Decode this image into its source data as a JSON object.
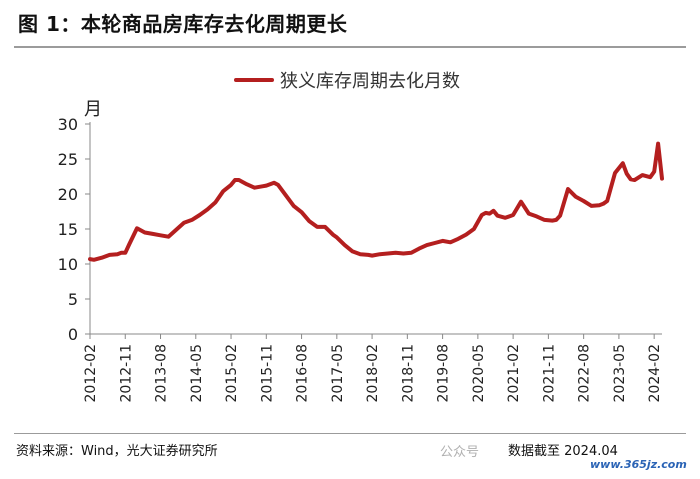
{
  "header": {
    "figure_title": "图 1：本轮商品房库存去化周期更长"
  },
  "footer": {
    "source": "资料来源：Wind，光大证券研究所",
    "watermark": "公众号",
    "note": "数据截至 2024.04",
    "site": "www.365jz.com"
  },
  "colors": {
    "series": "#b41f1f",
    "axis": "#888888",
    "rule": "#9b9b9b"
  },
  "chart_data": {
    "type": "line",
    "title": "",
    "ylabel": "月",
    "xlabel": "",
    "ylim": [
      0,
      30
    ],
    "yticks": [
      0,
      5,
      10,
      15,
      20,
      25,
      30
    ],
    "grid": false,
    "legend_position": "top",
    "x_tick_labels": [
      "2012-02",
      "2012-11",
      "2013-08",
      "2014-05",
      "2015-02",
      "2015-11",
      "2016-08",
      "2017-05",
      "2018-02",
      "2018-11",
      "2019-08",
      "2020-05",
      "2021-02",
      "2021-11",
      "2022-08",
      "2023-05",
      "2024-02"
    ],
    "series": [
      {
        "name": "狭义库存周期去化月数",
        "x": [
          "2012-02",
          "2012-03",
          "2012-05",
          "2012-07",
          "2012-09",
          "2012-10",
          "2012-11",
          "2012-12",
          "2013-02",
          "2013-04",
          "2013-06",
          "2013-08",
          "2013-10",
          "2013-12",
          "2014-02",
          "2014-04",
          "2014-06",
          "2014-08",
          "2014-10",
          "2014-12",
          "2015-02",
          "2015-03",
          "2015-04",
          "2015-06",
          "2015-08",
          "2015-10",
          "2015-11",
          "2016-01",
          "2016-02",
          "2016-04",
          "2016-06",
          "2016-08",
          "2016-10",
          "2016-12",
          "2017-02",
          "2017-04",
          "2017-05",
          "2017-07",
          "2017-09",
          "2017-11",
          "2018-01",
          "2018-02",
          "2018-04",
          "2018-06",
          "2018-08",
          "2018-10",
          "2018-12",
          "2019-02",
          "2019-04",
          "2019-06",
          "2019-08",
          "2019-10",
          "2019-12",
          "2020-02",
          "2020-04",
          "2020-06",
          "2020-07",
          "2020-08",
          "2020-09",
          "2020-10",
          "2020-12",
          "2021-02",
          "2021-04",
          "2021-06",
          "2021-08",
          "2021-10",
          "2021-12",
          "2022-01",
          "2022-02",
          "2022-04",
          "2022-06",
          "2022-08",
          "2022-10",
          "2022-12",
          "2023-01",
          "2023-02",
          "2023-04",
          "2023-06",
          "2023-07",
          "2023-08",
          "2023-09",
          "2023-11",
          "2024-01",
          "2024-02",
          "2024-03",
          "2024-04"
        ],
        "values": [
          10.7,
          10.6,
          10.9,
          11.3,
          11.4,
          11.6,
          11.6,
          12.8,
          15.1,
          14.5,
          14.3,
          14.1,
          13.9,
          14.9,
          15.9,
          16.3,
          17.0,
          17.8,
          18.8,
          20.4,
          21.3,
          22.0,
          22.0,
          21.4,
          20.9,
          21.1,
          21.2,
          21.6,
          21.3,
          19.8,
          18.3,
          17.4,
          16.1,
          15.3,
          15.3,
          14.2,
          13.8,
          12.7,
          11.8,
          11.4,
          11.3,
          11.2,
          11.4,
          11.5,
          11.6,
          11.5,
          11.6,
          12.2,
          12.7,
          13.0,
          13.3,
          13.1,
          13.6,
          14.2,
          15.0,
          17.0,
          17.3,
          17.2,
          17.6,
          16.9,
          16.6,
          17.0,
          18.9,
          17.2,
          16.8,
          16.3,
          16.2,
          16.3,
          16.9,
          20.7,
          19.6,
          19.0,
          18.3,
          18.4,
          18.6,
          19.0,
          23.0,
          24.4,
          22.9,
          22.1,
          22.0,
          22.7,
          22.4,
          23.2,
          27.2,
          22.2
        ]
      }
    ]
  }
}
